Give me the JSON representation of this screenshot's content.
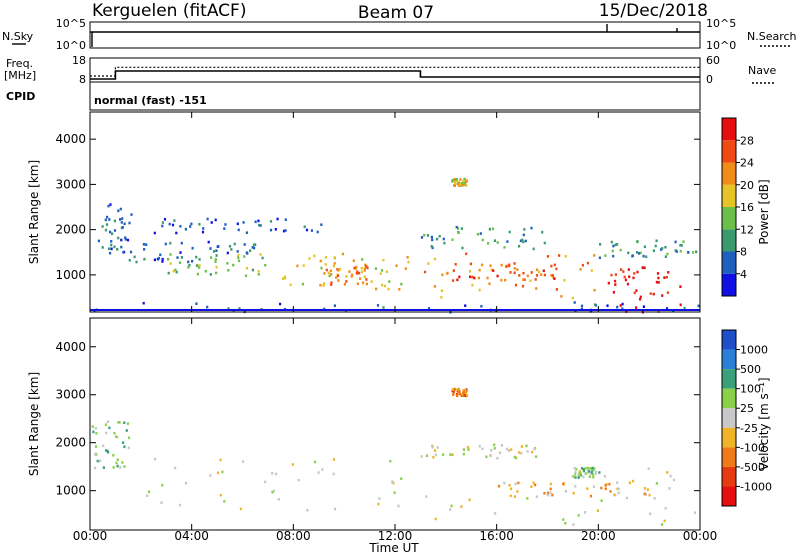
{
  "header": {
    "station": "Kerguelen (fitACF)",
    "beam": "Beam 07",
    "date": "15/Dec/2018"
  },
  "nsky_panel": {
    "left_label": "N.Sky",
    "right_label": "N.Search",
    "left_ticks": [
      "10^5",
      "10^0"
    ],
    "right_ticks": [
      "10^5",
      "10^0"
    ]
  },
  "freq_panel": {
    "left_label_line1": "Freq.",
    "left_label_line2": "[MHz]",
    "right_label": "Nave",
    "left_ticks": [
      "18",
      "8"
    ],
    "right_ticks": [
      "60",
      "0"
    ],
    "freq_mhz_series": [
      {
        "time_h": 0,
        "value": 8.5
      },
      {
        "time_h": 1,
        "value": 12.5
      },
      {
        "time_h": 13,
        "value": 9.5
      },
      {
        "time_h": 24,
        "value": 9.5
      }
    ],
    "nave_series": [
      {
        "time_h": 0,
        "value": 12
      },
      {
        "time_h": 1,
        "value": 38
      },
      {
        "time_h": 24,
        "value": 38
      }
    ]
  },
  "cpid": {
    "label": "CPID",
    "mode": "normal (fast) -151"
  },
  "chart_data": [
    {
      "type": "heatmap",
      "name": "power",
      "xlabel": "",
      "ylabel": "Slant Range [km]",
      "x_range_hours": [
        0,
        24
      ],
      "ylim": [
        180,
        4600
      ],
      "y_ticks": [
        "1000",
        "2000",
        "3000",
        "4000"
      ],
      "colorbar": {
        "label": "Power [dB]",
        "ticks": [
          "4",
          "8",
          "12",
          "16",
          "20",
          "24",
          "28"
        ],
        "colors": [
          "#1010e6",
          "#1f5fbf",
          "#3a9a6e",
          "#6cc04a",
          "#e6c428",
          "#f08c18",
          "#f04a14",
          "#e60e0e"
        ]
      },
      "regions": [
        {
          "t0": 0.0,
          "t1": 24.0,
          "r0": 180,
          "r1": 420,
          "level": 1
        },
        {
          "t0": 0.3,
          "t1": 1.6,
          "r0": 1500,
          "r1": 2600,
          "level": 1
        },
        {
          "t0": 1.5,
          "t1": 6.5,
          "r0": 1300,
          "r1": 1800,
          "level": 1
        },
        {
          "t0": 3.0,
          "t1": 7.0,
          "r0": 1000,
          "r1": 1500,
          "level": 3
        },
        {
          "t0": 7.5,
          "t1": 12.5,
          "r0": 700,
          "r1": 1500,
          "level": 4
        },
        {
          "t0": 9.0,
          "t1": 11.0,
          "r0": 800,
          "r1": 1300,
          "level": 5
        },
        {
          "t0": 2.5,
          "t1": 9.5,
          "r0": 1950,
          "r1": 2300,
          "level": 1
        },
        {
          "t0": 13.0,
          "t1": 20.0,
          "r0": 500,
          "r1": 1500,
          "level": 5
        },
        {
          "t0": 14.0,
          "t1": 18.5,
          "r0": 800,
          "r1": 1300,
          "level": 6
        },
        {
          "t0": 13.0,
          "t1": 18.0,
          "r0": 1600,
          "r1": 2100,
          "level": 2
        },
        {
          "t0": 14.2,
          "t1": 14.8,
          "r0": 3000,
          "r1": 3150,
          "level": 4
        },
        {
          "t0": 20.3,
          "t1": 23.2,
          "r0": 200,
          "r1": 1200,
          "level": 7
        },
        {
          "t0": 20.0,
          "t1": 24.0,
          "r0": 1400,
          "r1": 1800,
          "level": 2
        }
      ]
    },
    {
      "type": "heatmap",
      "name": "velocity",
      "xlabel": "Time UT",
      "ylabel": "Slant Range [km]",
      "x_range_hours": [
        0,
        24
      ],
      "x_ticks": [
        "00:00",
        "04:00",
        "08:00",
        "12:00",
        "16:00",
        "20:00",
        "00:00"
      ],
      "ylim": [
        180,
        4600
      ],
      "y_ticks": [
        "1000",
        "2000",
        "3000",
        "4000"
      ],
      "colorbar": {
        "label": "Velocity [m s⁻¹]",
        "ticks": [
          "1000",
          "500",
          "100",
          "25",
          "-25",
          "-100",
          "-500",
          "-1000"
        ],
        "colors": [
          "#1e4fc8",
          "#2b7fd8",
          "#3aa07a",
          "#8ad04a",
          "#c8c8c8",
          "#f0b42a",
          "#f07a18",
          "#e63a10",
          "#e60e0e"
        ]
      },
      "regions": [
        {
          "t0": 0.0,
          "t1": 1.5,
          "r0": 1500,
          "r1": 2500,
          "level": 3
        },
        {
          "t0": 2.0,
          "t1": 12.5,
          "r0": 600,
          "r1": 1700,
          "level": 4
        },
        {
          "t0": 13.0,
          "t1": 24.0,
          "r0": 300,
          "r1": 1500,
          "level": 4
        },
        {
          "t0": 13.0,
          "t1": 18.0,
          "r0": 1700,
          "r1": 2000,
          "level": 4
        },
        {
          "t0": 19.0,
          "t1": 20.0,
          "r0": 1300,
          "r1": 1500,
          "level": 3
        },
        {
          "t0": 14.2,
          "t1": 14.8,
          "r0": 3000,
          "r1": 3150,
          "level": 6
        },
        {
          "t0": 16.0,
          "t1": 22.0,
          "r0": 900,
          "r1": 1200,
          "level": 5
        }
      ]
    }
  ]
}
